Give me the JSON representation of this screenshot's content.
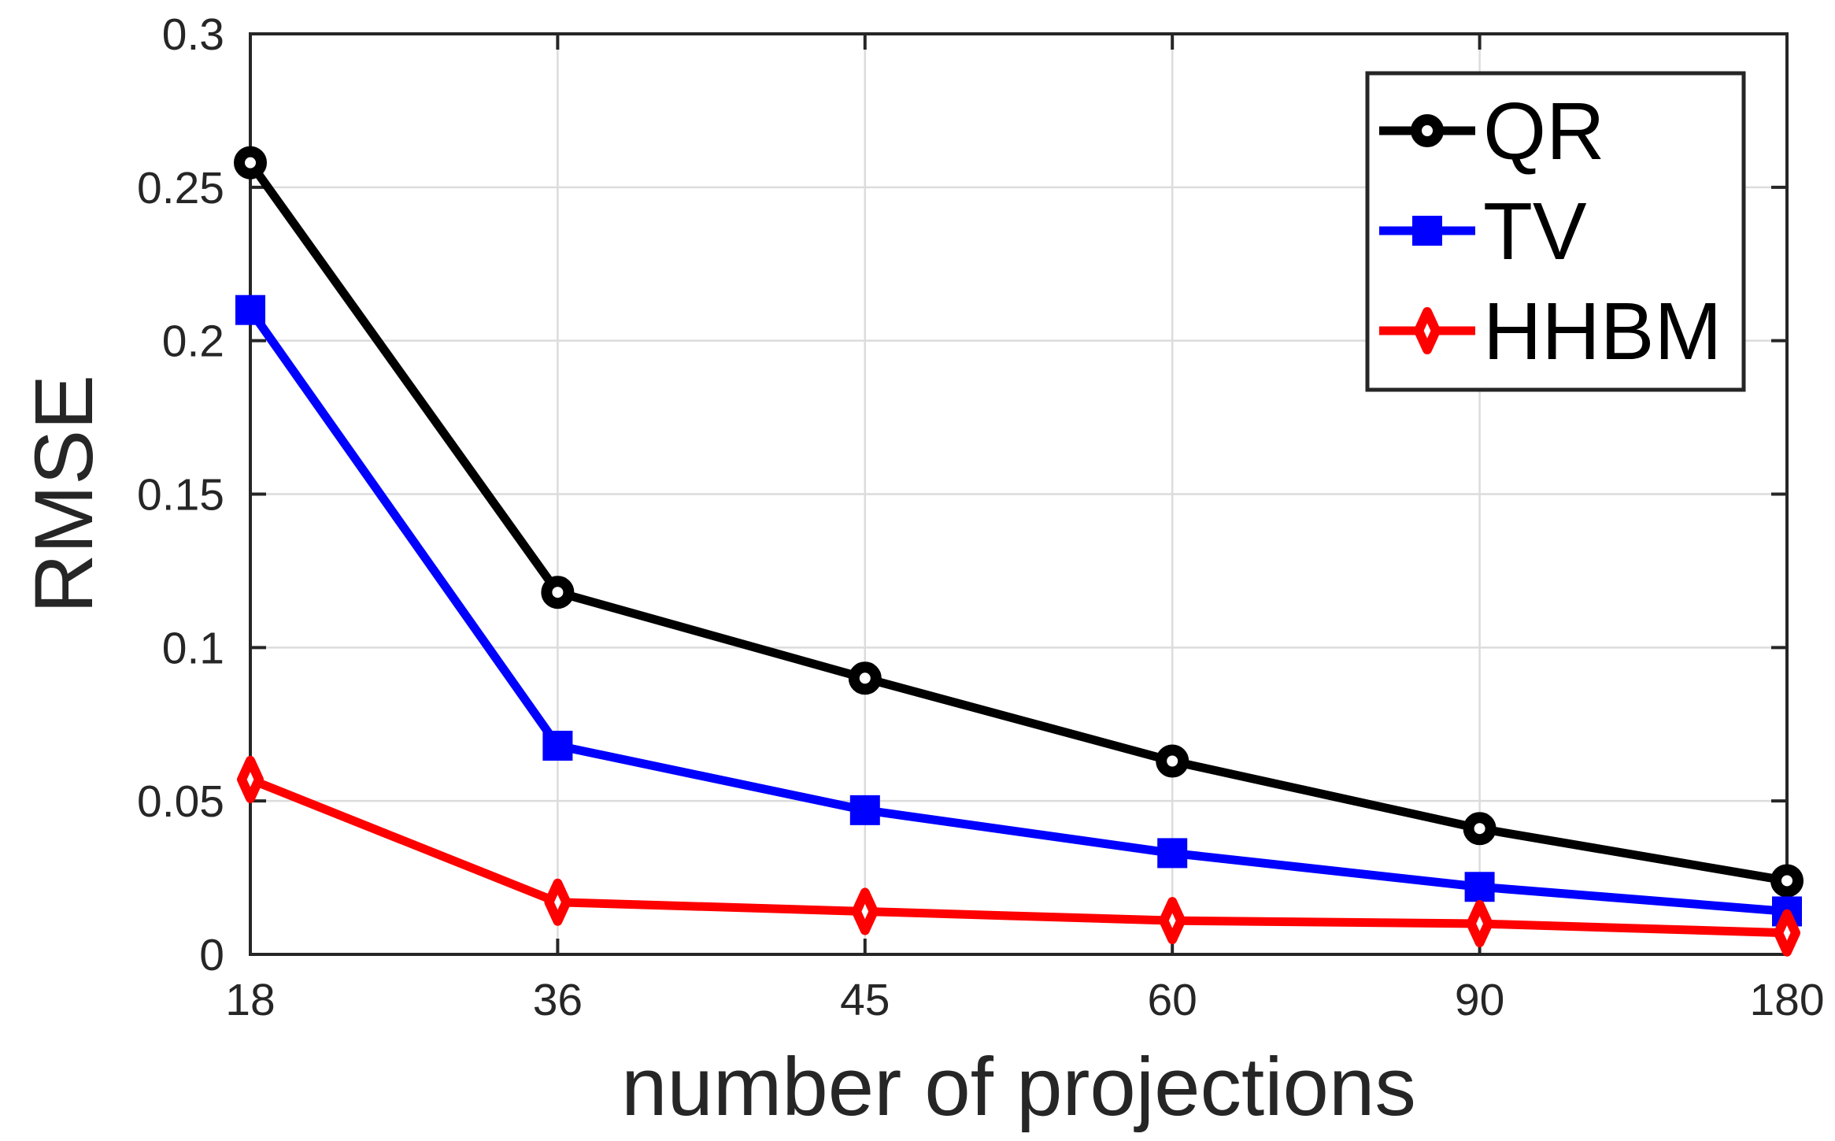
{
  "chart_data": {
    "type": "line",
    "title": "",
    "xlabel": "number of projections",
    "ylabel": "RMSE",
    "categories": [
      18,
      36,
      45,
      60,
      90,
      180
    ],
    "x_tick_labels": [
      "18",
      "36",
      "45",
      "60",
      "90",
      "180"
    ],
    "y_ticks": [
      0,
      0.05,
      0.1,
      0.15,
      0.2,
      0.25,
      0.3
    ],
    "y_tick_labels": [
      "0",
      "0.05",
      "0.1",
      "0.15",
      "0.2",
      "0.25",
      "0.3"
    ],
    "ylim": [
      0,
      0.3
    ],
    "grid": true,
    "legend_position": "top-right",
    "series": [
      {
        "name": "QR",
        "color": "#000000",
        "marker": "circle",
        "values": [
          0.258,
          0.118,
          0.09,
          0.063,
          0.041,
          0.024
        ]
      },
      {
        "name": "TV",
        "color": "#0000ff",
        "marker": "square",
        "values": [
          0.21,
          0.068,
          0.047,
          0.033,
          0.022,
          0.014
        ]
      },
      {
        "name": "HHBM",
        "color": "#ff0000",
        "marker": "diamond",
        "values": [
          0.057,
          0.017,
          0.014,
          0.011,
          0.01,
          0.007
        ]
      }
    ]
  },
  "colors": {
    "axis": "#262626",
    "grid": "#dcdcdc",
    "background": "#ffffff",
    "marker_face": "#ffffff"
  }
}
